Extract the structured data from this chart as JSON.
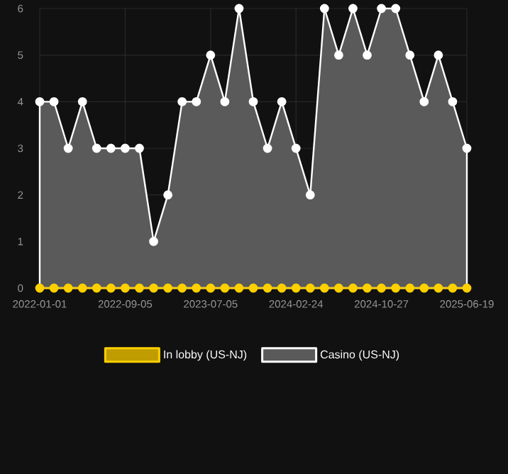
{
  "chart_data": {
    "type": "area",
    "categories": [
      "2022-01-01",
      null,
      null,
      null,
      null,
      null,
      "2022-09-05",
      null,
      null,
      null,
      null,
      null,
      "2023-07-05",
      null,
      null,
      null,
      null,
      null,
      "2024-02-24",
      null,
      null,
      null,
      null,
      null,
      "2024-10-27",
      null,
      null,
      null,
      null,
      null,
      "2025-06-19"
    ],
    "ylim": [
      0,
      6
    ],
    "yticks": [
      0,
      1,
      2,
      3,
      4,
      5,
      6
    ],
    "grid": true,
    "legend": "bottom",
    "marker": "circle",
    "series": [
      {
        "name": "In lobby (US-NJ)",
        "type": "line",
        "color": "#ffd000",
        "values": [
          0,
          0,
          0,
          0,
          0,
          0,
          0,
          0,
          0,
          0,
          0,
          0,
          0,
          0,
          0,
          0,
          0,
          0,
          0,
          0,
          0,
          0,
          0,
          0,
          0,
          0,
          0,
          0,
          0,
          0,
          0
        ]
      },
      {
        "name": "Casino (US-NJ)",
        "color": "#ffffff",
        "values": [
          4,
          4,
          3,
          4,
          3,
          3,
          3,
          3,
          1,
          2,
          4,
          4,
          5,
          4,
          6,
          4,
          3,
          4,
          3,
          2,
          6,
          5,
          6,
          5,
          6,
          6,
          5,
          4,
          5,
          4,
          3
        ]
      }
    ]
  }
}
